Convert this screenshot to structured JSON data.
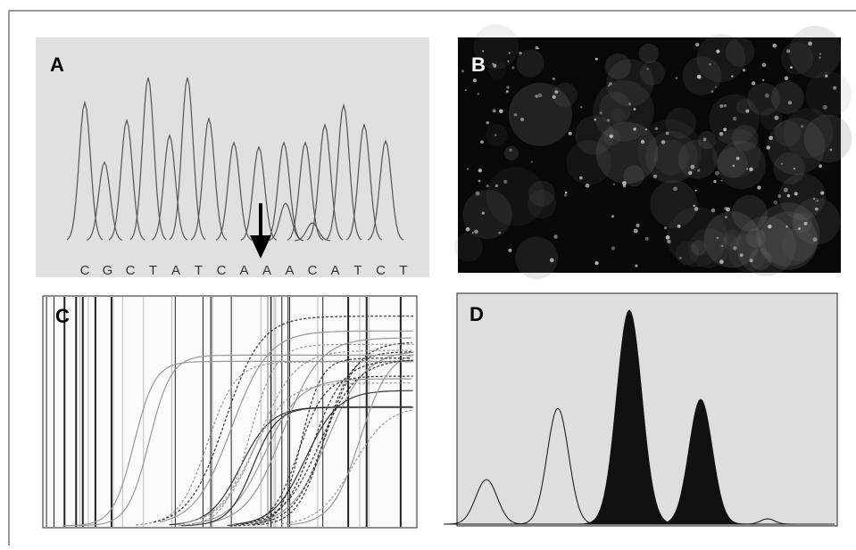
{
  "panels": [
    {
      "label": "A",
      "sequence": [
        "C",
        "G",
        "C",
        "T",
        "A",
        "T",
        "C",
        "A",
        "A",
        "A",
        "C",
        "A",
        "T",
        "C",
        "T"
      ]
    },
    {
      "label": "B"
    },
    {
      "label": "C"
    },
    {
      "label": "D"
    }
  ]
}
